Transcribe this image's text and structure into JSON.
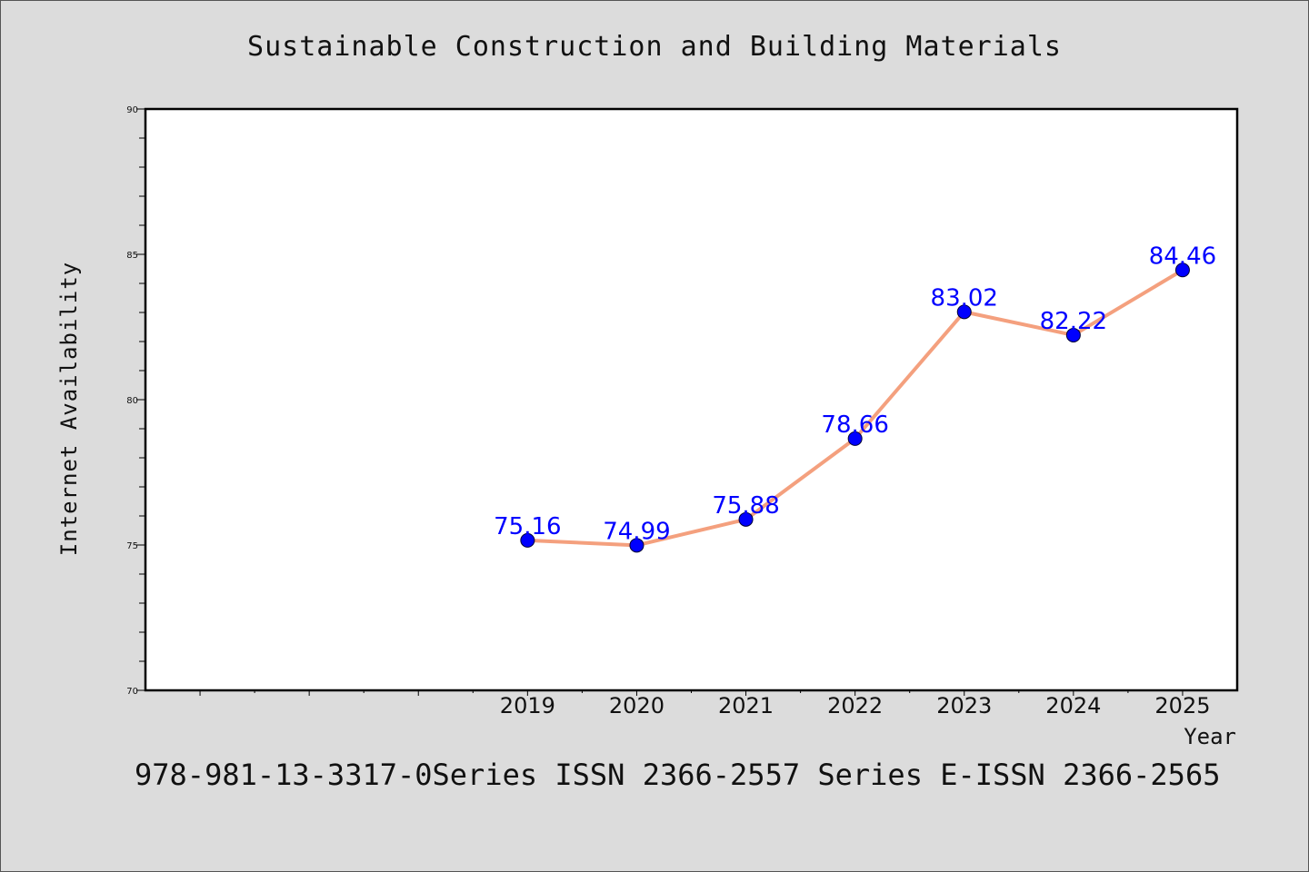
{
  "title": "Sustainable Construction and Building Materials",
  "footer": "978-981-13-3317-0Series ISSN 2366-2557 Series E-ISSN 2366-2565",
  "chart_data": {
    "type": "line",
    "title": "Sustainable Construction and Building Materials",
    "xlabel": "Year",
    "ylabel": "Internet Availability",
    "x": [
      "2019",
      "2020",
      "2021",
      "2022",
      "2023",
      "2024",
      "2025"
    ],
    "series": [
      {
        "values": [
          75.16,
          74.99,
          75.88,
          78.66,
          83.02,
          82.22,
          84.46
        ]
      }
    ],
    "data_labels": [
      "75.16",
      "74.99",
      "75.88",
      "78.66",
      "83.02",
      "82.22",
      "84.46"
    ],
    "ylim": [
      70,
      90
    ],
    "yticks": [
      70,
      75,
      80,
      85,
      90
    ],
    "xlim": [
      2015.5,
      2025.5
    ],
    "grid": false,
    "colors": {
      "line": "#f4a07e",
      "marker": "#0000ff",
      "label": "#0000ff"
    }
  }
}
